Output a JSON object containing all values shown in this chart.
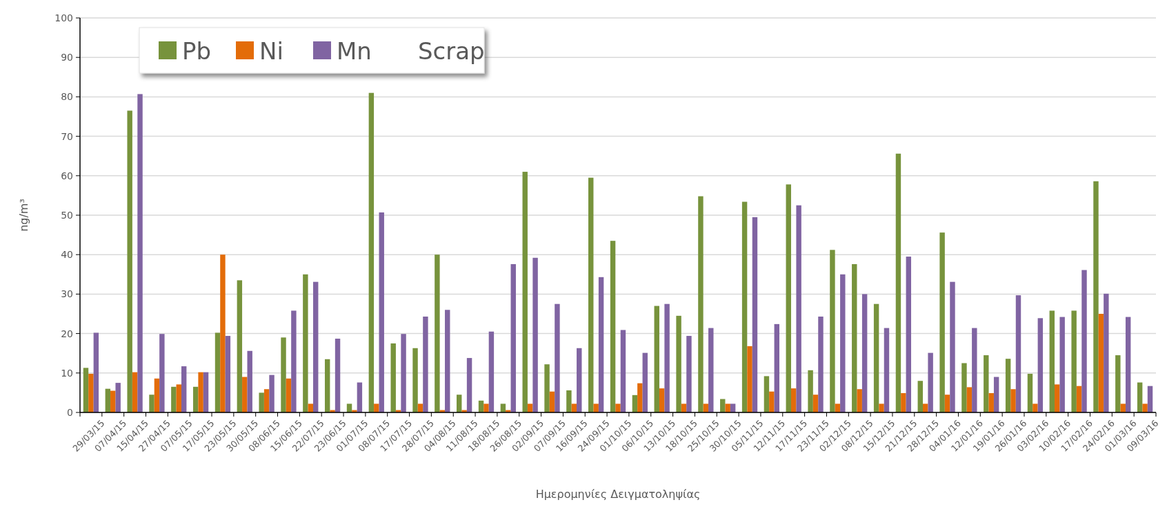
{
  "chart_data": {
    "type": "bar",
    "xlabel": "Ημερομηνίες Δειγματοληψίας",
    "ylabel": "ng/m³",
    "legend_title": "Scrap",
    "legend": "top left",
    "grid": "y",
    "ylim": [
      0,
      100
    ],
    "yticks": [
      0,
      10,
      20,
      30,
      40,
      50,
      60,
      70,
      80,
      90,
      100
    ],
    "categories": [
      "29/03/15",
      "07/04/15",
      "15/04/15",
      "27/04/15",
      "07/05/15",
      "17/05/15",
      "23/05/15",
      "30/05/15",
      "08/06/15",
      "15/06/15",
      "22/07/15",
      "23/06/15",
      "01/07/15",
      "08/07/15",
      "17/07/15",
      "28/07/15",
      "04/08/15",
      "11/08/15",
      "18/08/15",
      "26/08/15",
      "02/09/15",
      "07/09/15",
      "16/09/15",
      "24/09/15",
      "01/10/15",
      "06/10/15",
      "13/10/15",
      "18/10/15",
      "25/10/15",
      "30/10/15",
      "05/11/15",
      "12/11/15",
      "17/11/15",
      "23/11/15",
      "02/12/15",
      "08/12/15",
      "15/12/15",
      "21/12/15",
      "28/12/15",
      "04/01/16",
      "12/01/16",
      "19/01/16",
      "26/01/16",
      "03/02/16",
      "10/02/16",
      "17/02/16",
      "24/02/16",
      "01/03/16",
      "09/03/16"
    ],
    "series": [
      {
        "name": "Pb",
        "color": "#77933c",
        "values": [
          11.3,
          6,
          76.5,
          4.5,
          6.5,
          6.5,
          20.2,
          33.5,
          5,
          19,
          35,
          13.5,
          2.2,
          81,
          17.5,
          16.3,
          40,
          4.5,
          3,
          2.2,
          61,
          12.2,
          5.6,
          59.5,
          43.5,
          4.4,
          27,
          24.5,
          54.8,
          3.4,
          53.4,
          9.2,
          57.8,
          10.7,
          41.2,
          37.6,
          27.5,
          65.6,
          8,
          45.6,
          12.5,
          14.5,
          13.6,
          9.8,
          25.8,
          25.8,
          58.6,
          14.5,
          7.6
        ]
      },
      {
        "name": "Ni",
        "color": "#e36c09",
        "values": [
          9.8,
          5.5,
          10.2,
          8.6,
          7.1,
          10.2,
          40,
          9,
          5.9,
          8.6,
          2.2,
          0.6,
          0.6,
          2.2,
          0.6,
          2.2,
          0.6,
          0.6,
          2.2,
          0.6,
          2.2,
          5.3,
          2.2,
          2.2,
          2.2,
          7.4,
          6.1,
          2.2,
          2.2,
          2.2,
          16.8,
          5.3,
          6.1,
          4.5,
          2.2,
          5.9,
          2.2,
          4.9,
          2.2,
          4.5,
          6.4,
          4.9,
          5.9,
          2.2,
          7.1,
          6.7,
          25,
          2.2,
          2.2
        ]
      },
      {
        "name": "Mn",
        "color": "#8064a2",
        "values": [
          20.2,
          7.5,
          80.7,
          19.9,
          11.7,
          10.2,
          19.4,
          15.6,
          9.5,
          25.8,
          33.1,
          18.7,
          7.6,
          50.7,
          19.9,
          24.3,
          26,
          13.8,
          20.5,
          37.6,
          39.2,
          27.5,
          16.3,
          34.3,
          20.9,
          15.1,
          27.5,
          19.4,
          21.4,
          2.2,
          49.5,
          22.4,
          52.5,
          24.3,
          35,
          30,
          21.4,
          39.5,
          15.1,
          33.1,
          21.4,
          9,
          29.7,
          23.9,
          24.2,
          36.1,
          30.1,
          24.2,
          6.7
        ]
      }
    ]
  }
}
